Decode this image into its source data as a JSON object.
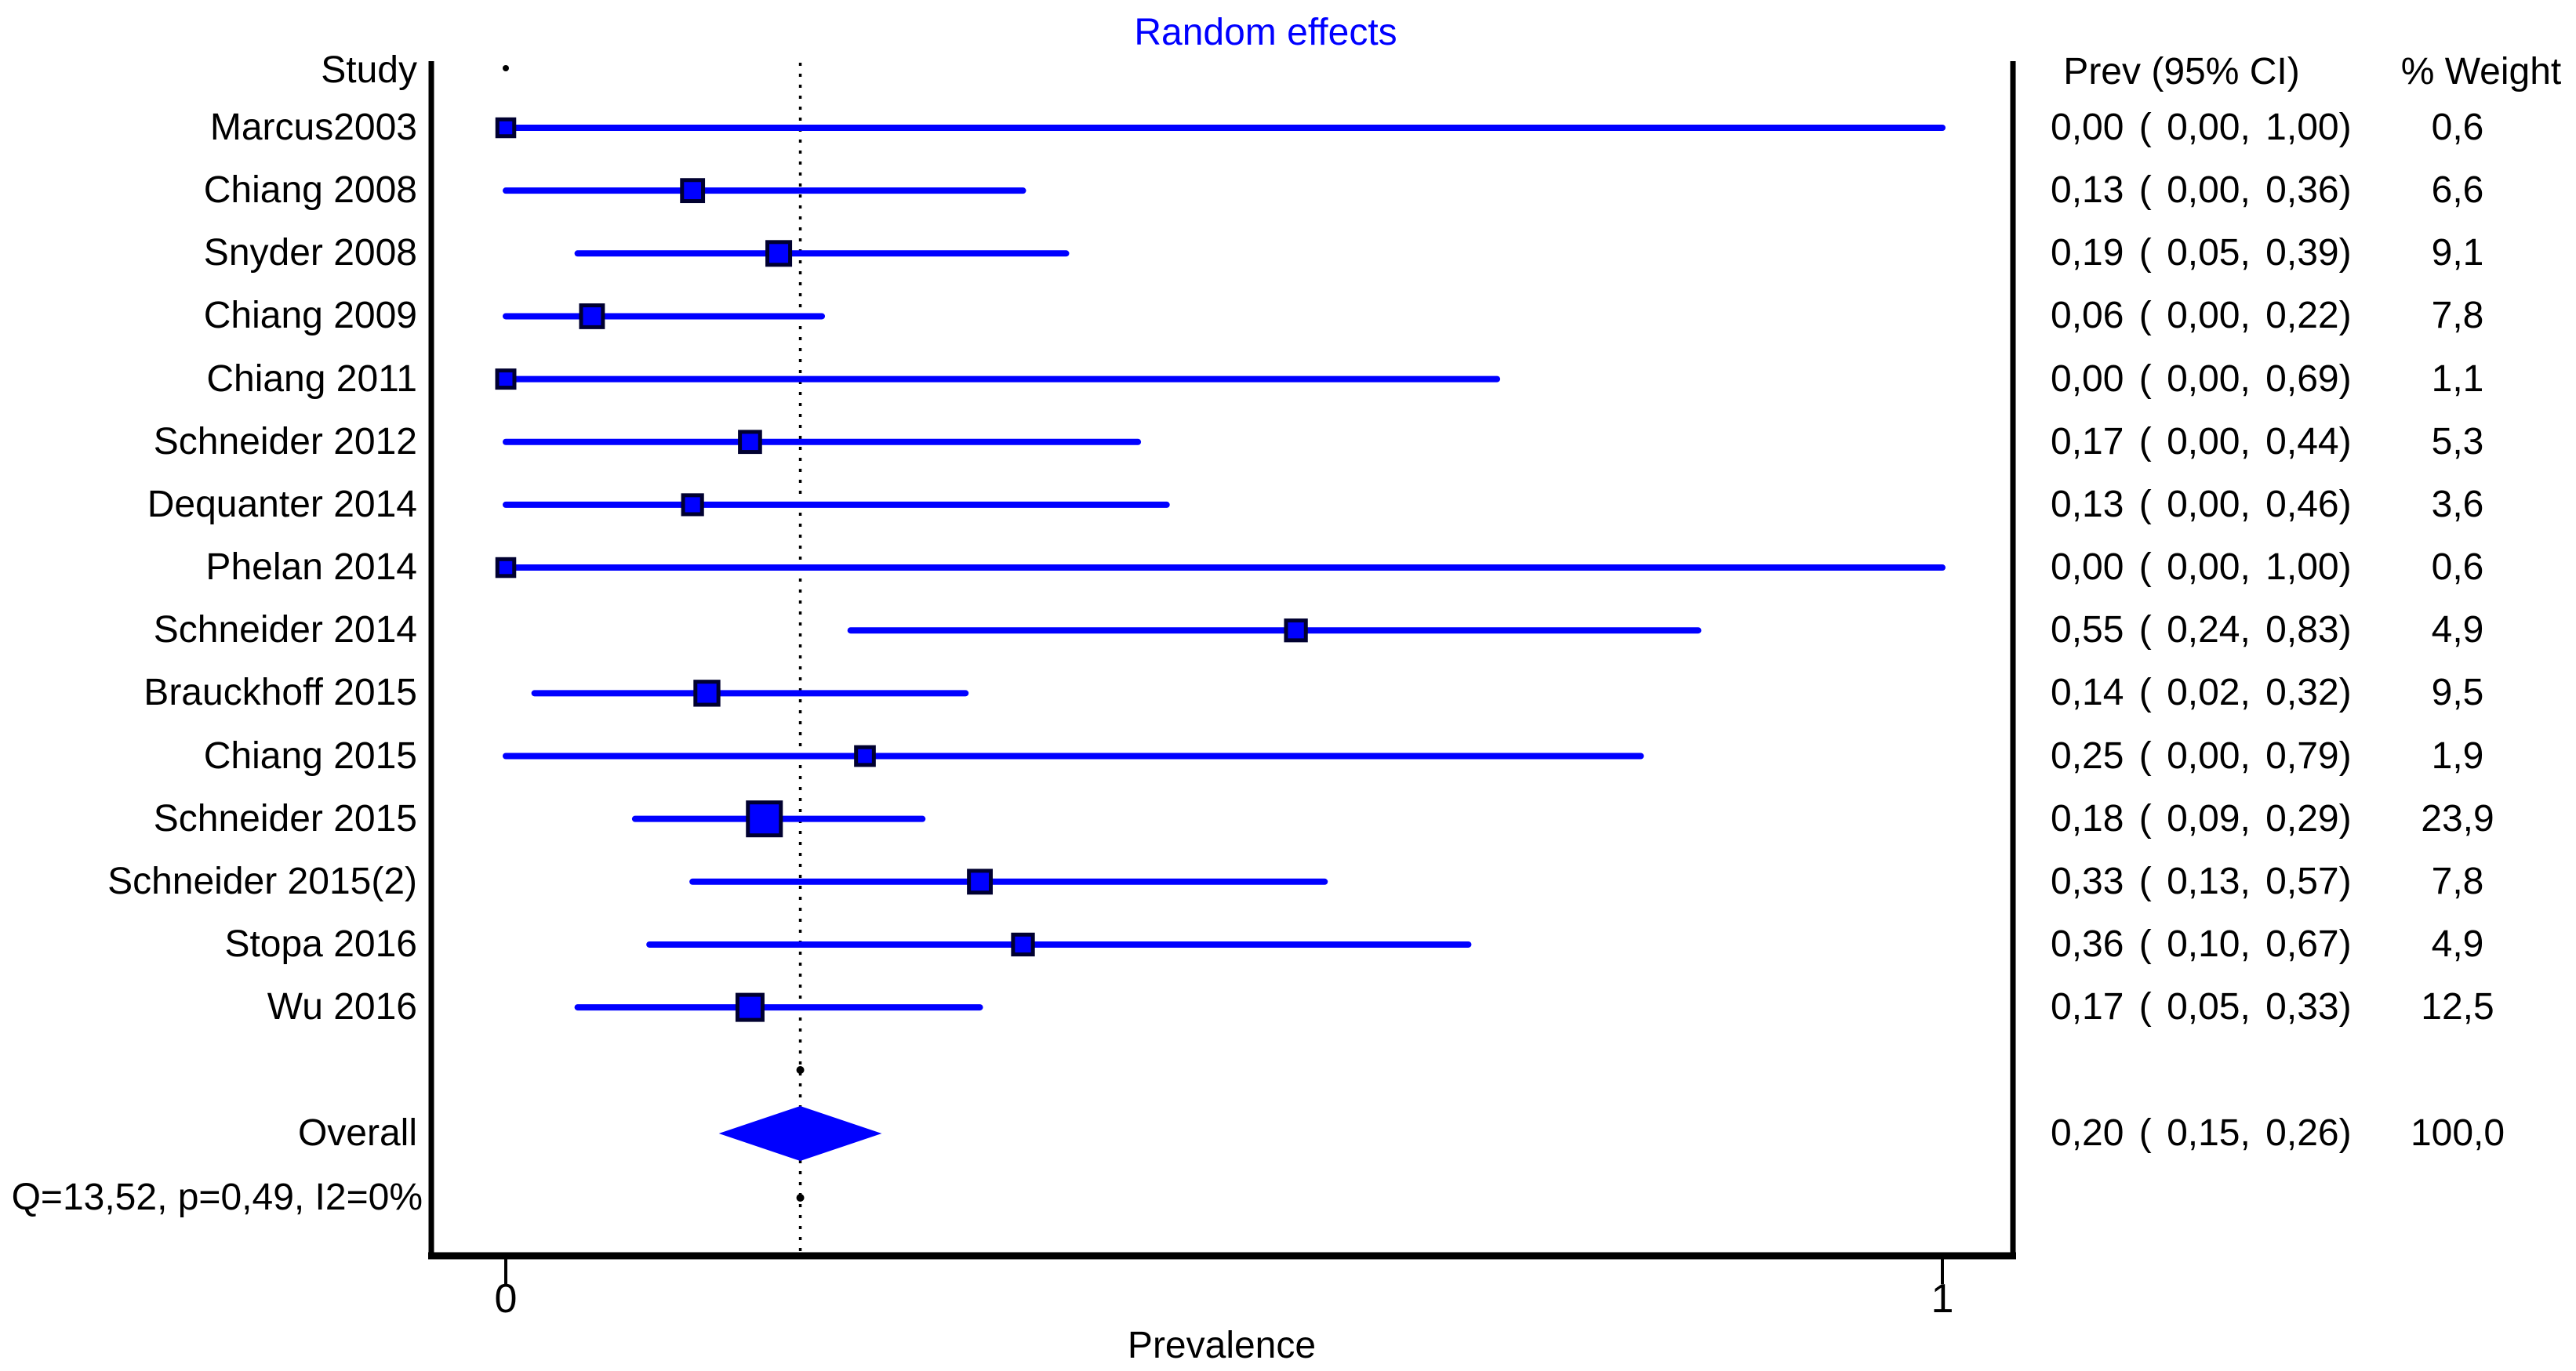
{
  "chart_data": {
    "type": "forest",
    "title": "Random effects",
    "columns": {
      "study": "Study",
      "prev_ci": "Prev (95% CI)",
      "weight": "% Weight"
    },
    "x_axis": {
      "label": "Prevalence",
      "range": [
        0,
        1
      ],
      "ticks": [
        {
          "label": "0",
          "value": 0
        },
        {
          "label": "1",
          "value": 1
        }
      ]
    },
    "studies": [
      {
        "label": "Marcus2003",
        "prev": 0.0,
        "lo": 0.0,
        "hi": 1.0,
        "prev_ci_text": "0,00 ( 0,00, 1,00)",
        "weight": 0.6,
        "weight_text": "0,6"
      },
      {
        "label": "Chiang 2008",
        "prev": 0.13,
        "lo": 0.0,
        "hi": 0.36,
        "prev_ci_text": "0,13 ( 0,00, 0,36)",
        "weight": 6.6,
        "weight_text": "6,6"
      },
      {
        "label": "Snyder 2008",
        "prev": 0.19,
        "lo": 0.05,
        "hi": 0.39,
        "prev_ci_text": "0,19 ( 0,05, 0,39)",
        "weight": 9.1,
        "weight_text": "9,1"
      },
      {
        "label": "Chiang 2009",
        "prev": 0.06,
        "lo": 0.0,
        "hi": 0.22,
        "prev_ci_text": "0,06 ( 0,00, 0,22)",
        "weight": 7.8,
        "weight_text": "7,8"
      },
      {
        "label": "Chiang 2011",
        "prev": 0.0,
        "lo": 0.0,
        "hi": 0.69,
        "prev_ci_text": "0,00 ( 0,00, 0,69)",
        "weight": 1.1,
        "weight_text": "1,1"
      },
      {
        "label": "Schneider 2012",
        "prev": 0.17,
        "lo": 0.0,
        "hi": 0.44,
        "prev_ci_text": "0,17 ( 0,00, 0,44)",
        "weight": 5.3,
        "weight_text": "5,3"
      },
      {
        "label": "Dequanter 2014",
        "prev": 0.13,
        "lo": 0.0,
        "hi": 0.46,
        "prev_ci_text": "0,13 ( 0,00, 0,46)",
        "weight": 3.6,
        "weight_text": "3,6"
      },
      {
        "label": "Phelan 2014",
        "prev": 0.0,
        "lo": 0.0,
        "hi": 1.0,
        "prev_ci_text": "0,00 ( 0,00, 1,00)",
        "weight": 0.6,
        "weight_text": "0,6"
      },
      {
        "label": "Schneider 2014",
        "prev": 0.55,
        "lo": 0.24,
        "hi": 0.83,
        "prev_ci_text": "0,55 ( 0,24, 0,83)",
        "weight": 4.9,
        "weight_text": "4,9"
      },
      {
        "label": "Brauckhoff 2015",
        "prev": 0.14,
        "lo": 0.02,
        "hi": 0.32,
        "prev_ci_text": "0,14 ( 0,02, 0,32)",
        "weight": 9.5,
        "weight_text": "9,5"
      },
      {
        "label": "Chiang 2015",
        "prev": 0.25,
        "lo": 0.0,
        "hi": 0.79,
        "prev_ci_text": "0,25 ( 0,00, 0,79)",
        "weight": 1.9,
        "weight_text": "1,9"
      },
      {
        "label": "Schneider 2015",
        "prev": 0.18,
        "lo": 0.09,
        "hi": 0.29,
        "prev_ci_text": "0,18 ( 0,09, 0,29)",
        "weight": 23.9,
        "weight_text": "23,9"
      },
      {
        "label": "Schneider 2015(2)",
        "prev": 0.33,
        "lo": 0.13,
        "hi": 0.57,
        "prev_ci_text": "0,33 ( 0,13, 0,57)",
        "weight": 7.8,
        "weight_text": "7,8"
      },
      {
        "label": "Stopa 2016",
        "prev": 0.36,
        "lo": 0.1,
        "hi": 0.67,
        "prev_ci_text": "0,36 ( 0,10, 0,67)",
        "weight": 4.9,
        "weight_text": "4,9"
      },
      {
        "label": "Wu 2016",
        "prev": 0.17,
        "lo": 0.05,
        "hi": 0.33,
        "prev_ci_text": "0,17 ( 0,05, 0,33)",
        "weight": 12.5,
        "weight_text": "12,5"
      }
    ],
    "overall": {
      "label": "Overall",
      "prev": 0.2,
      "lo": 0.15,
      "hi": 0.26,
      "prev_ci_text": "0,20 ( 0,15, 0,26)",
      "weight": 100.0,
      "weight_text": "100,0"
    },
    "heterogeneity": "Q=13,52, p=0,49, I2=0%",
    "style": {
      "accent": "#0000ff",
      "marker_edge": "#000030",
      "text_color": "#000000",
      "reference_line_x": 0.205
    }
  }
}
